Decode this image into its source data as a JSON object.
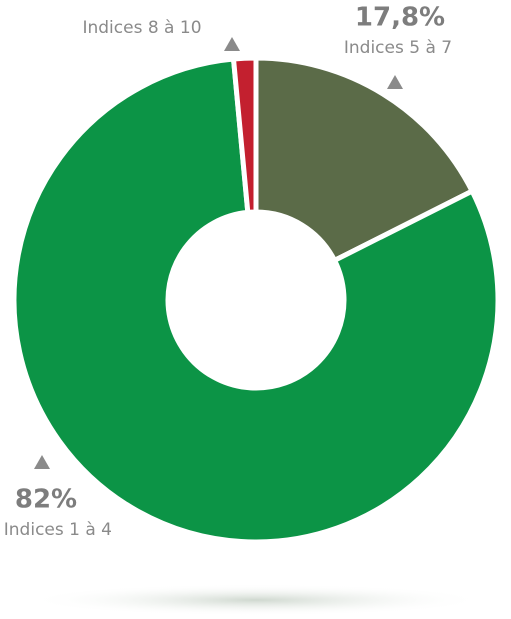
{
  "chart_data": {
    "type": "donut",
    "categories": [
      "Indices 5 à 7",
      "Indices 1 à 4",
      "Indices 8 à 10"
    ],
    "values": [
      17.8,
      82,
      1.5
    ],
    "value_labels": [
      "17,8%",
      "82%",
      null
    ],
    "colors": [
      "#5b6b48",
      "#0c9446",
      "#c3202f"
    ]
  }
}
